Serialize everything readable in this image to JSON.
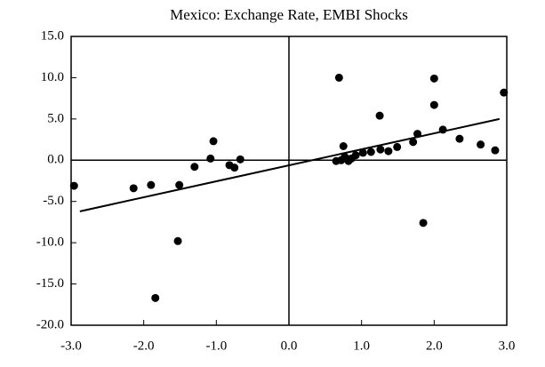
{
  "chart_data": {
    "type": "scatter",
    "title": "Mexico:  Exchange Rate, EMBI Shocks",
    "x": [
      -2.96,
      -2.14,
      -1.9,
      -1.84,
      -1.53,
      -1.51,
      -1.3,
      -1.08,
      -1.04,
      -0.82,
      -0.75,
      -0.67,
      0.69,
      2.0,
      2.0,
      2.96,
      1.25,
      2.12,
      1.77,
      0.75,
      2.35,
      2.64,
      2.84,
      1.85,
      1.71,
      1.49,
      1.26,
      1.02,
      0.86,
      0.72,
      0.82,
      0.65,
      0.77,
      0.92,
      1.13,
      1.37
    ],
    "values": [
      -3.1,
      -3.4,
      -3.0,
      -16.7,
      -9.8,
      -3.0,
      -0.8,
      0.2,
      2.3,
      -0.6,
      -0.9,
      0.1,
      10.0,
      9.9,
      6.7,
      8.2,
      5.4,
      3.7,
      3.2,
      1.7,
      2.6,
      1.9,
      1.2,
      -7.6,
      2.2,
      1.6,
      1.3,
      0.9,
      0.2,
      0.0,
      -0.1,
      -0.1,
      0.4,
      0.6,
      1.0,
      1.1
    ],
    "color": "#000000",
    "fit_line": {
      "x": [
        -2.88,
        2.9
      ],
      "values": [
        -6.2,
        5.0
      ]
    },
    "xlim": [
      -3.0,
      3.0
    ],
    "xticks": [
      {
        "value": -3,
        "label": "-3.0"
      },
      {
        "value": -2,
        "label": "-2.0"
      },
      {
        "value": -1,
        "label": "-1.0"
      },
      {
        "value": 0,
        "label": "0.0"
      },
      {
        "value": 1,
        "label": "1.0"
      },
      {
        "value": 2,
        "label": "2.0"
      },
      {
        "value": 3,
        "label": "3.0"
      }
    ],
    "ylim": [
      -20.0,
      15.0
    ],
    "yticks": [
      {
        "value": -20,
        "label": "-20.0"
      },
      {
        "value": -15,
        "label": "-15.0"
      },
      {
        "value": -10,
        "label": "-10.0"
      },
      {
        "value": -5,
        "label": "-5.0"
      },
      {
        "value": 0,
        "label": "0.0"
      },
      {
        "value": 5,
        "label": "5.0"
      },
      {
        "value": 10,
        "label": "10.0"
      },
      {
        "value": 15,
        "label": "15.0"
      }
    ],
    "grid": false
  }
}
